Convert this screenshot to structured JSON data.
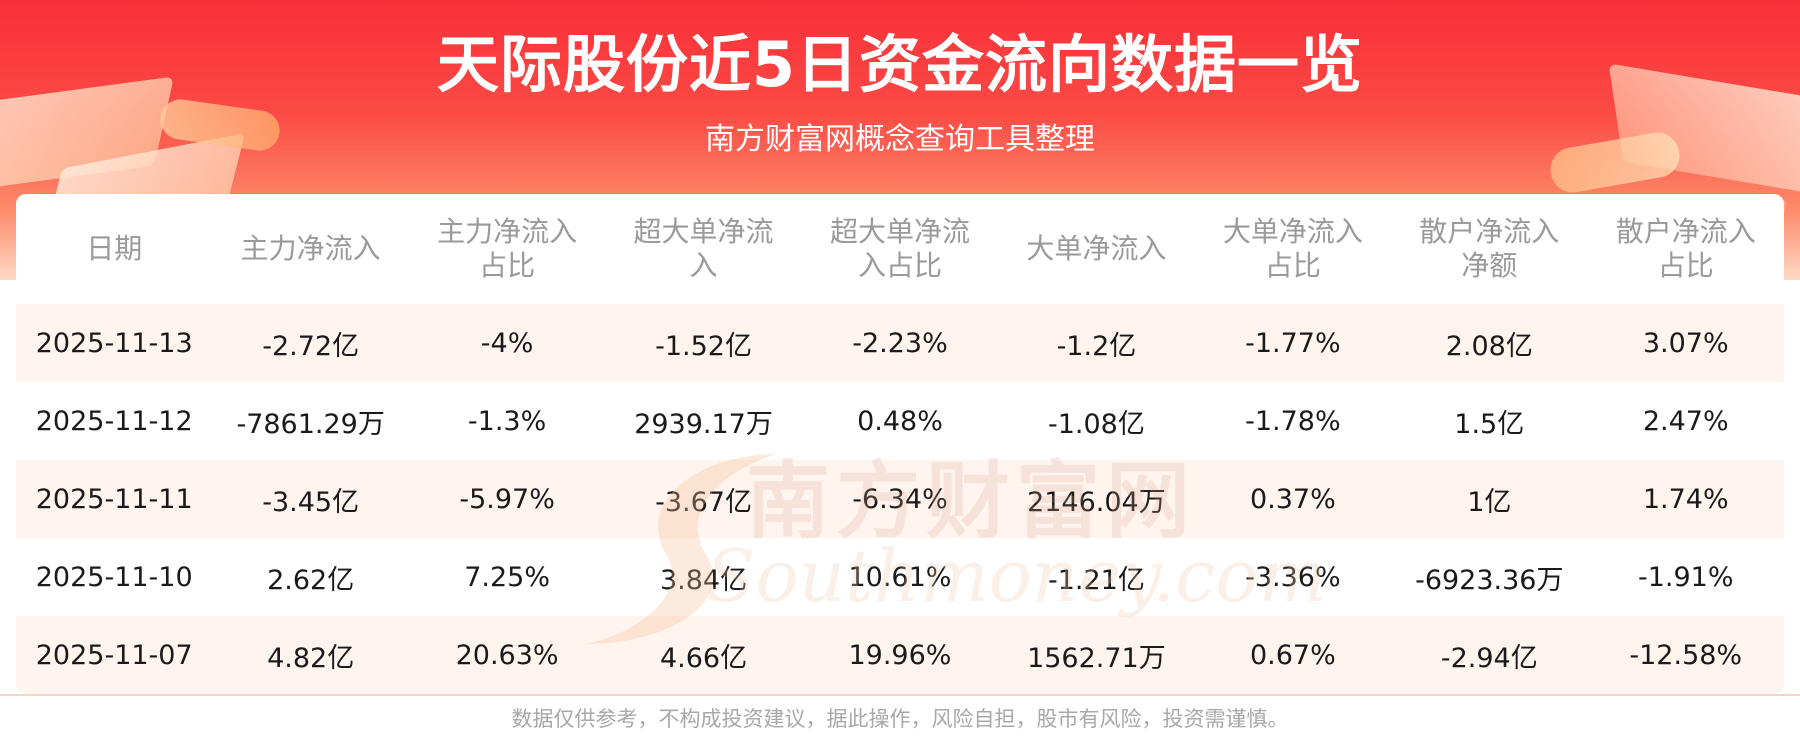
{
  "title": "天际股份近5日资金流向数据一览",
  "subtitle": "南方财富网概念查询工具整理",
  "watermark": {
    "cn": "南方财富网",
    "en": "Southmoney.com"
  },
  "table": {
    "headers": [
      [
        "日期"
      ],
      [
        "主力净流入"
      ],
      [
        "主力净流入",
        "占比"
      ],
      [
        "超大单净流",
        "入"
      ],
      [
        "超大单净流",
        "入占比"
      ],
      [
        "大单净流入"
      ],
      [
        "大单净流入",
        "占比"
      ],
      [
        "散户净流入",
        "净额"
      ],
      [
        "散户净流入",
        "占比"
      ]
    ],
    "rows": [
      [
        "2025-11-13",
        "-2.72亿",
        "-4%",
        "-1.52亿",
        "-2.23%",
        "-1.2亿",
        "-1.77%",
        "2.08亿",
        "3.07%"
      ],
      [
        "2025-11-12",
        "-7861.29万",
        "-1.3%",
        "2939.17万",
        "0.48%",
        "-1.08亿",
        "-1.78%",
        "1.5亿",
        "2.47%"
      ],
      [
        "2025-11-11",
        "-3.45亿",
        "-5.97%",
        "-3.67亿",
        "-6.34%",
        "2146.04万",
        "0.37%",
        "1亿",
        "1.74%"
      ],
      [
        "2025-11-10",
        "2.62亿",
        "7.25%",
        "3.84亿",
        "10.61%",
        "-1.21亿",
        "-3.36%",
        "-6923.36万",
        "-1.91%"
      ],
      [
        "2025-11-07",
        "4.82亿",
        "20.63%",
        "4.66亿",
        "19.96%",
        "1562.71万",
        "0.67%",
        "-2.94亿",
        "-12.58%"
      ]
    ]
  },
  "footer": "数据仅供参考，不构成投资建议，据此操作，风险自担，股市有风险，投资需谨慎。",
  "colors": {
    "banner_top": "#f92f38",
    "header_text": "#9a9a9a",
    "cell_text": "#1a1a1a",
    "row_stripe": "#fff2e8",
    "footer_text": "#a8a8a8"
  }
}
